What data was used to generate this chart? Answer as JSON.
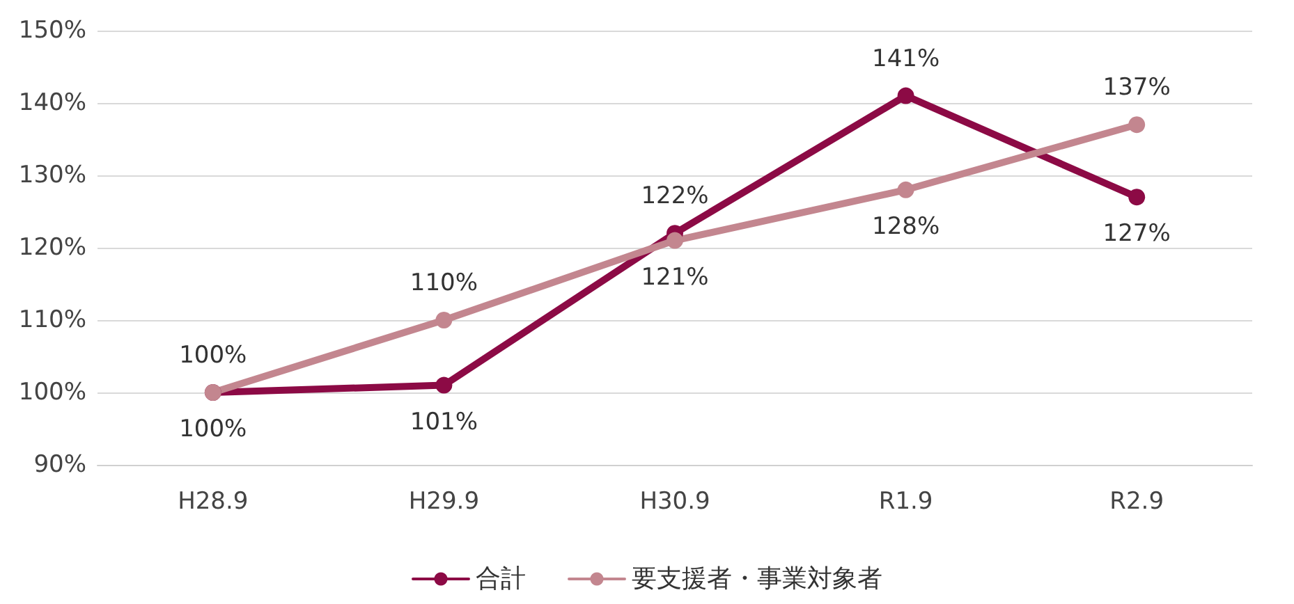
{
  "chart_data": {
    "type": "line",
    "categories": [
      "H28.9",
      "H29.9",
      "H30.9",
      "R1.9",
      "R2.9"
    ],
    "series": [
      {
        "name": "合計",
        "color": "#8c0a45",
        "values": [
          100,
          101,
          122,
          141,
          127
        ],
        "value_labels": [
          "100%",
          "101%",
          "122%",
          "141%",
          "127%"
        ]
      },
      {
        "name": "要支援者・事業対象者",
        "color": "#c3868f",
        "values": [
          100,
          110,
          121,
          128,
          137
        ],
        "value_labels": [
          "100%",
          "110%",
          "121%",
          "128%",
          "137%"
        ]
      }
    ],
    "ylim": [
      90,
      150
    ],
    "yticks": [
      {
        "value": 90,
        "label": "90%"
      },
      {
        "value": 100,
        "label": "100%"
      },
      {
        "value": 110,
        "label": "110%"
      },
      {
        "value": 120,
        "label": "120%"
      },
      {
        "value": 130,
        "label": "130%"
      },
      {
        "value": 140,
        "label": "140%"
      },
      {
        "value": 150,
        "label": "150%"
      }
    ],
    "grid": "y",
    "legend": "bottom",
    "marker": "circle",
    "line_style": "solid"
  }
}
